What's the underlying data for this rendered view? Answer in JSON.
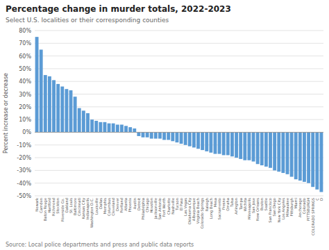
{
  "chart_data": {
    "type": "bar",
    "title": "Percentage change in murder totals, 2022-2023",
    "subtitle": "Select U.S. localities or their corresponding counties",
    "source": "Source: Local police departments and press and public data reports",
    "ylabel": "Percent increase or decrease",
    "color": "#5b9bd5",
    "grid": true,
    "ylim": [
      -50,
      80
    ],
    "yticks": [
      {
        "value": -50,
        "label": "-50%"
      },
      {
        "value": -40,
        "label": "-40%"
      },
      {
        "value": -30,
        "label": "-30%"
      },
      {
        "value": -20,
        "label": "-20%"
      },
      {
        "value": -10,
        "label": "-10%"
      },
      {
        "value": 0,
        "label": "0%"
      },
      {
        "value": 10,
        "label": "10%"
      },
      {
        "value": 20,
        "label": "20%"
      },
      {
        "value": 30,
        "label": "30%"
      },
      {
        "value": 40,
        "label": "40%"
      },
      {
        "value": 50,
        "label": "50%"
      },
      {
        "value": 60,
        "label": "60%"
      },
      {
        "value": 70,
        "label": "70%"
      },
      {
        "value": 80,
        "label": "80%"
      }
    ],
    "categories": [
      "Newark",
      "Camden",
      "Baton Rouge",
      "Hartford",
      "Richmond",
      "Stockton",
      "Riverside Co.",
      "Oakland",
      "St. Louis",
      "Baltimore",
      "Cincinnati",
      "Kansas City",
      "Indianapolis",
      "Washington D.C.",
      "Louisville",
      "Dallas",
      "Memphis",
      "Columbus",
      "Cleveland",
      "Denver",
      "Portland",
      "Atlanta",
      "Phoenix",
      "Austin",
      "Detroit",
      "Philadelphia",
      "Chicago",
      "Houston",
      "Jacksonville",
      "San Antonio",
      "Fort Worth",
      "Charlotte",
      "Nashville",
      "Tucson",
      "El Paso",
      "Las Vegas",
      "Oklahoma City",
      "Albuquerque",
      "Virginia Beach",
      "Colorado Springs",
      "Raleigh",
      "Long Beach",
      "Mesa",
      "Sacramento",
      "Fresno",
      "Omaha",
      "Tulsa",
      "Arlington",
      "Tampa",
      "Wichita",
      "Minneapolis",
      "San Jose",
      "New Orleans",
      "Boston",
      "Seattle",
      "San Francisco",
      "San Diego",
      "New York City",
      "Los Angeles",
      "Milwaukee",
      "Pittsburgh",
      "Miami",
      "Anchorage",
      "Colorado",
      "PITTSBURGH",
      "COLORADO SPRINGS",
      "C",
      "D"
    ],
    "values": [
      75,
      65,
      45,
      44,
      41,
      38,
      36,
      34,
      33,
      28,
      19,
      17,
      15,
      10,
      9,
      8,
      8,
      7,
      7,
      6,
      6,
      5,
      4,
      3,
      -3,
      -4,
      -4,
      -5,
      -5,
      -5,
      -6,
      -6,
      -7,
      -8,
      -9,
      -10,
      -11,
      -12,
      -13,
      -14,
      -15,
      -16,
      -17,
      -17,
      -18,
      -18,
      -19,
      -20,
      -21,
      -22,
      -22,
      -23,
      -25,
      -26,
      -27,
      -28,
      -30,
      -31,
      -32,
      -33,
      -35,
      -37,
      -38,
      -39,
      -40,
      -43,
      -45,
      -47
    ]
  }
}
